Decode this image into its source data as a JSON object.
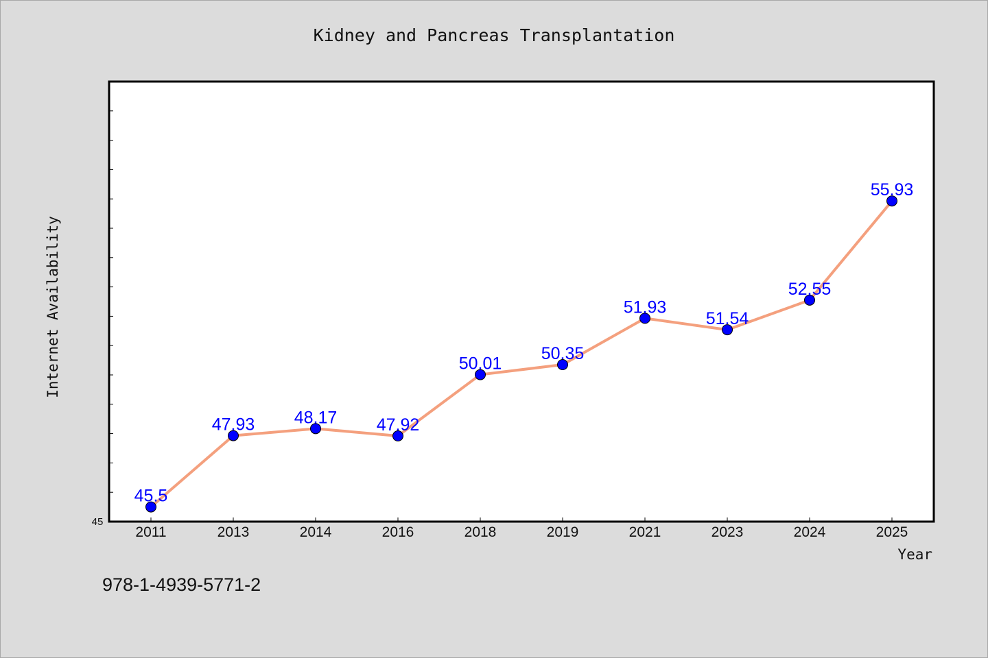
{
  "chart_data": {
    "type": "line",
    "title": "Kidney and Pancreas Transplantation",
    "xlabel": "Year",
    "ylabel": "Internet Availability",
    "categories": [
      "2011",
      "2013",
      "2014",
      "2016",
      "2018",
      "2019",
      "2021",
      "2023",
      "2024",
      "2025"
    ],
    "values": [
      45.5,
      47.93,
      48.17,
      47.92,
      50.01,
      50.35,
      51.93,
      51.54,
      52.55,
      55.93
    ],
    "data_labels": [
      "45.5",
      "47.93",
      "48.17",
      "47.92",
      "50.01",
      "50.35",
      "51.93",
      "51.54",
      "52.55",
      "55.93"
    ],
    "ylim": [
      45,
      60
    ],
    "y_tick_label": "45",
    "grid": false,
    "line_color": "#f4a07e",
    "marker_color": "#0000ff",
    "label_color": "#0000ff"
  },
  "footer": {
    "code": "978-1-4939-5771-2"
  }
}
